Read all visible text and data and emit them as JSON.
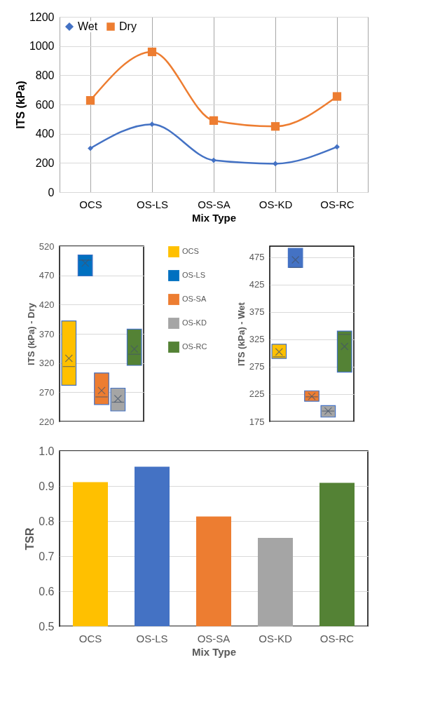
{
  "chart_data": [
    {
      "type": "line",
      "xlabel": "Mix Type",
      "ylabel": "ITS (kPa)",
      "categories": [
        "OCS",
        "OS-LS",
        "OS-SA",
        "OS-KD",
        "OS-RC"
      ],
      "series": [
        {
          "name": "Wet",
          "color": "#4472c4",
          "marker": "diamond",
          "values": [
            300,
            465,
            218,
            195,
            310
          ]
        },
        {
          "name": "Dry",
          "color": "#ed7d31",
          "marker": "square",
          "values": [
            628,
            960,
            490,
            450,
            655
          ]
        }
      ],
      "ylim": [
        0,
        1200
      ],
      "yticks": [
        0,
        200,
        400,
        600,
        800,
        1000,
        1200
      ],
      "grid": true,
      "legend": "top left",
      "line_style": "solid"
    },
    {
      "type": "box",
      "ylabel": "ITS (kPa) - Dry",
      "categories": [
        null
      ],
      "series": [
        {
          "name": "OCS",
          "color": "#ffc000",
          "boxes": [
            {
              "low": 282,
              "q1": 282,
              "median": 314,
              "q3": 392,
              "high": 392,
              "mean": 328
            }
          ]
        },
        {
          "name": "OS-LS",
          "color": "#0070c0",
          "boxes": [
            {
              "low": 469,
              "q1": 469,
              "median": 496,
              "q3": 505,
              "high": 505,
              "mean": 491
            }
          ]
        },
        {
          "name": "OS-SA",
          "color": "#ed7d31",
          "boxes": [
            {
              "low": 249,
              "q1": 249,
              "median": 262,
              "q3": 303,
              "high": 303,
              "mean": 273
            }
          ]
        },
        {
          "name": "OS-KD",
          "color": "#a5a5a5",
          "boxes": [
            {
              "low": 238,
              "q1": 238,
              "median": 253,
              "q3": 277,
              "high": 277,
              "mean": 259
            }
          ]
        },
        {
          "name": "OS-RC",
          "color": "#548235",
          "boxes": [
            {
              "low": 316,
              "q1": 316,
              "median": 335,
              "q3": 378,
              "high": 378,
              "mean": 344
            }
          ]
        }
      ],
      "ylim": [
        220,
        520
      ],
      "yticks": [
        220,
        270,
        320,
        370,
        420,
        470,
        520
      ],
      "grid": "y",
      "tick_labels": "y",
      "legend": "right"
    },
    {
      "type": "box",
      "ylabel": "ITS (kPa) - Wet",
      "categories": [
        null
      ],
      "series": [
        {
          "color": "#ffc000",
          "boxes": [
            {
              "low": 290,
              "q1": 290,
              "median": 293,
              "q3": 316,
              "high": 316,
              "mean": 302
            }
          ]
        },
        {
          "color": "#4472c4",
          "boxes": [
            {
              "low": 456,
              "q1": 456,
              "median": 456,
              "q3": 491,
              "high": 491,
              "mean": 470
            }
          ]
        },
        {
          "color": "#ed7d31",
          "boxes": [
            {
              "low": 212,
              "q1": 212,
              "median": 220,
              "q3": 231,
              "high": 231,
              "mean": 221
            }
          ]
        },
        {
          "color": "#a5a5a5",
          "boxes": [
            {
              "low": 183,
              "q1": 183,
              "median": 194,
              "q3": 204,
              "high": 204,
              "mean": 194
            }
          ]
        },
        {
          "color": "#548235",
          "boxes": [
            {
              "low": 265,
              "q1": 265,
              "median": 334,
              "q3": 340,
              "high": 340,
              "mean": 312
            }
          ]
        }
      ],
      "ylim": [
        175,
        495
      ],
      "yticks": [
        175,
        225,
        275,
        325,
        375,
        425,
        475
      ],
      "grid": "y",
      "tick_labels": "y"
    },
    {
      "type": "bar",
      "xlabel": "Mix Type",
      "ylabel": "TSR",
      "categories": [
        "OCS",
        "OS-LS",
        "OS-SA",
        "OS-KD",
        "OS-RC"
      ],
      "values": [
        0.911,
        0.955,
        0.813,
        0.752,
        0.909
      ],
      "colors": [
        "#ffc000",
        "#4472c4",
        "#ed7d31",
        "#a5a5a5",
        "#548235"
      ],
      "ylim": [
        0.5,
        1.0
      ],
      "yticks": [
        {
          "value": 0.5,
          "label": "0.5"
        },
        {
          "value": 0.6,
          "label": "0.6"
        },
        {
          "value": 0.7,
          "label": "0.7"
        },
        {
          "value": 0.8,
          "label": "0.8"
        },
        {
          "value": 0.9,
          "label": "0.9"
        },
        {
          "value": 1.0,
          "label": "1.0"
        }
      ],
      "grid": "y"
    }
  ]
}
